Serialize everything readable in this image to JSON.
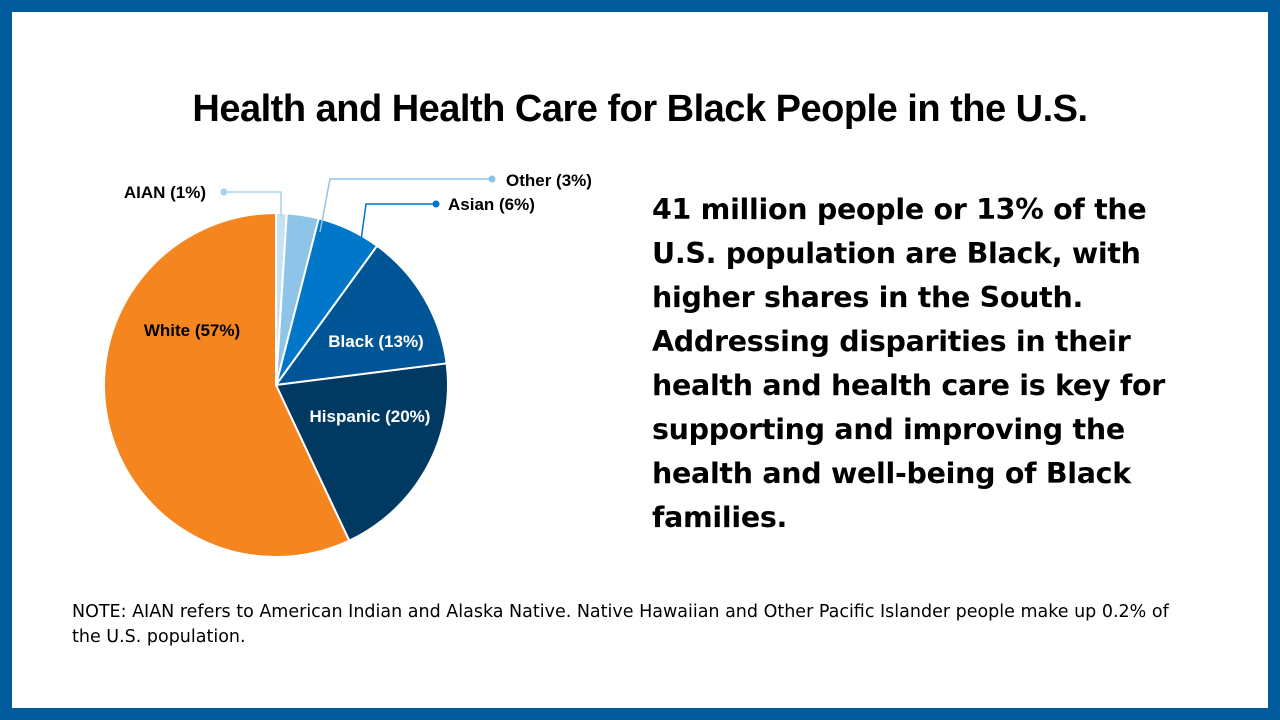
{
  "colors": {
    "frame": "#005a9c",
    "background": "#ffffff"
  },
  "title": "Health and Health Care for Black People in the U.S.",
  "summary": "41 million people or 13% of the U.S. population are Black, with higher shares in the South. Addressing disparities in their health and health care is key for supporting and improving the health and well-being of Black families.",
  "note": "NOTE: AIAN refers to American Indian and Alaska Native. Native Hawaiian and Other Pacific Islander people make up 0.2% of the U.S. population.",
  "chart_data": {
    "type": "pie",
    "slices": [
      {
        "label": "AIAN (1%)",
        "value": 1,
        "color": "#c7e2f3",
        "label_placement": "outside"
      },
      {
        "label": "Other (3%)",
        "value": 3,
        "color": "#8ec4e8",
        "label_placement": "outside"
      },
      {
        "label": "Asian (6%)",
        "value": 6,
        "color": "#0077c8",
        "label_placement": "outside"
      },
      {
        "label": "Black (13%)",
        "value": 13,
        "color": "#005596",
        "label_placement": "inside"
      },
      {
        "label": "Hispanic (20%)",
        "value": 20,
        "color": "#003a63",
        "label_placement": "inside"
      },
      {
        "label": "White (57%)",
        "value": 57,
        "color": "#f5861f",
        "label_placement": "inside"
      }
    ]
  }
}
